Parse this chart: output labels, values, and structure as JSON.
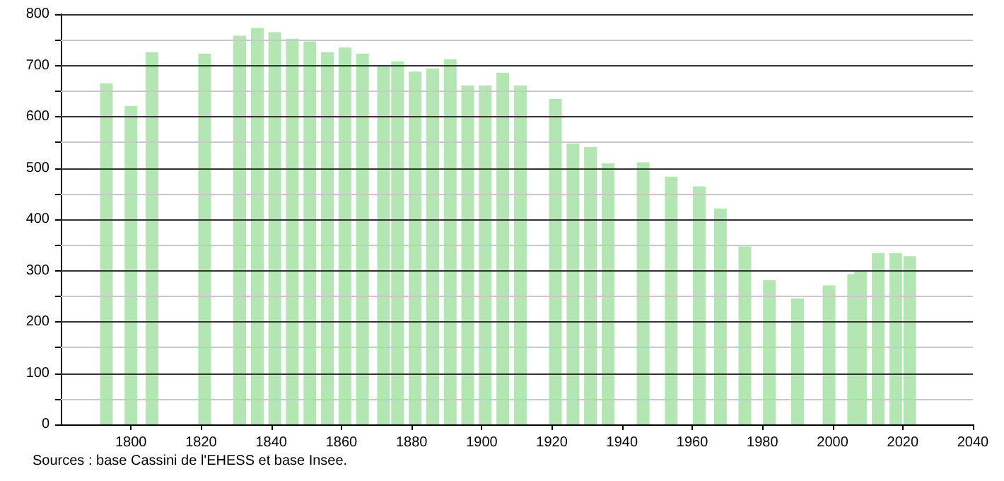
{
  "chart_data": {
    "type": "bar",
    "x": [
      1793,
      1800,
      1806,
      1821,
      1831,
      1836,
      1841,
      1846,
      1851,
      1856,
      1861,
      1866,
      1872,
      1876,
      1881,
      1886,
      1891,
      1896,
      1901,
      1906,
      1911,
      1921,
      1926,
      1931,
      1936,
      1946,
      1954,
      1962,
      1968,
      1975,
      1982,
      1990,
      1999,
      2006,
      2008,
      2013,
      2018,
      2022
    ],
    "values": [
      665,
      621,
      726,
      723,
      758,
      773,
      765,
      752,
      747,
      726,
      735,
      723,
      701,
      708,
      688,
      694,
      712,
      661,
      661,
      686,
      661,
      635,
      548,
      541,
      509,
      511,
      483,
      464,
      421,
      347,
      281,
      246,
      271,
      293,
      300,
      334,
      334,
      328
    ],
    "color": "#b3e6b3",
    "xlim": [
      1780,
      2040
    ],
    "xticks": [
      1800,
      1820,
      1840,
      1860,
      1880,
      1900,
      1920,
      1940,
      1960,
      1980,
      2000,
      2020,
      2040
    ],
    "ylim": [
      0,
      800
    ],
    "yticks": [
      0,
      {
        "value": 50,
        "label": null
      },
      100,
      {
        "value": 150,
        "label": null
      },
      200,
      {
        "value": 250,
        "label": null
      },
      300,
      {
        "value": 350,
        "label": null
      },
      400,
      {
        "value": 450,
        "label": null
      },
      500,
      {
        "value": 550,
        "label": null
      },
      600,
      {
        "value": 650,
        "label": null
      },
      700,
      {
        "value": 750,
        "label": null
      },
      800
    ],
    "grid": "y",
    "annotations": [
      "Sources : base Cassini de l'EHESS et base Insee."
    ]
  }
}
